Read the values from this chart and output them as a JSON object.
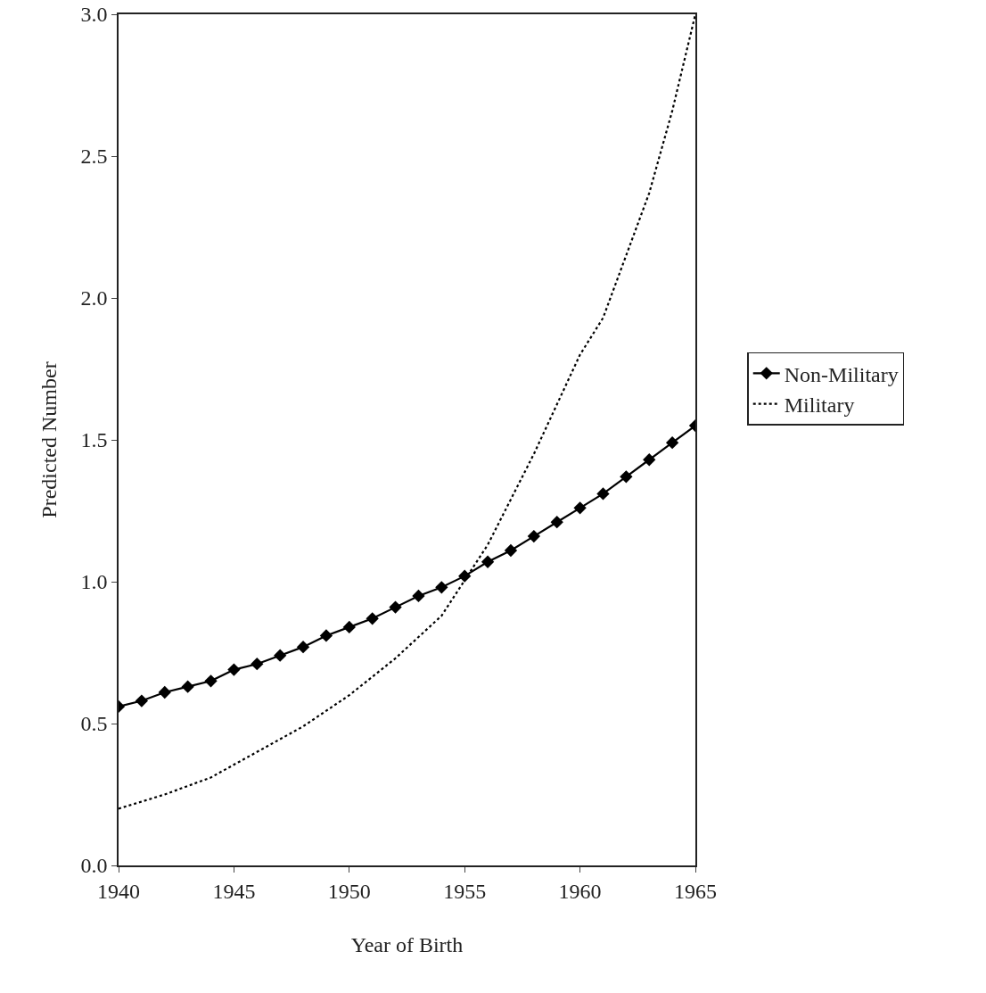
{
  "chart_data": {
    "type": "line",
    "xlabel": "Year of Birth",
    "ylabel": "Predicted Number",
    "xlim": [
      1940,
      1965
    ],
    "xticks": [
      1940,
      1945,
      1950,
      1955,
      1960,
      1965
    ],
    "ylim": [
      0,
      3
    ],
    "yticks": [
      {
        "value": 0,
        "label": "0.0"
      },
      {
        "value": 0.5,
        "label": "0.5"
      },
      {
        "value": 1,
        "label": "1.0"
      },
      {
        "value": 1.5,
        "label": "1.5"
      },
      {
        "value": 2,
        "label": "2.0"
      },
      {
        "value": 2.5,
        "label": "2.5"
      },
      {
        "value": 3,
        "label": "3.0"
      }
    ],
    "grid": false,
    "legend": "right",
    "series": [
      {
        "name": "Non-Military",
        "color": "#000000",
        "marker": "diamond",
        "line_style": "solid",
        "x": [
          1940,
          1941,
          1942,
          1943,
          1944,
          1945,
          1946,
          1947,
          1948,
          1949,
          1950,
          1951,
          1952,
          1953,
          1954,
          1955,
          1956,
          1957,
          1958,
          1959,
          1960,
          1961,
          1962,
          1963,
          1964,
          1965
        ],
        "values": [
          0.56,
          0.58,
          0.61,
          0.63,
          0.65,
          0.69,
          0.71,
          0.74,
          0.77,
          0.81,
          0.84,
          0.87,
          0.91,
          0.95,
          0.98,
          1.02,
          1.07,
          1.11,
          1.16,
          1.21,
          1.26,
          1.31,
          1.37,
          1.43,
          1.49,
          1.55
        ]
      },
      {
        "name": "Military",
        "color": "#000000",
        "marker": "none",
        "line_style": "dotted",
        "x": [
          1940,
          1942,
          1944,
          1946,
          1948,
          1950,
          1952,
          1954,
          1956,
          1958,
          1960,
          1961,
          1962,
          1963,
          1964,
          1965
        ],
        "values": [
          0.2,
          0.25,
          0.31,
          0.4,
          0.49,
          0.6,
          0.73,
          0.88,
          1.13,
          1.45,
          1.8,
          1.93,
          2.15,
          2.37,
          2.66,
          3.0
        ]
      }
    ]
  }
}
